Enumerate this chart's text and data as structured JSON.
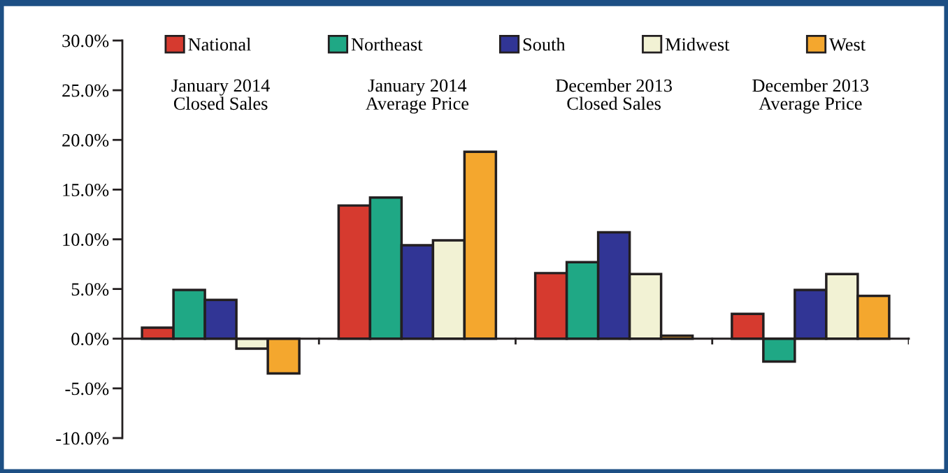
{
  "chart_data": {
    "type": "bar",
    "categories": [
      "January 2014\nClosed Sales",
      "January 2014\nAverage Price",
      "December 2013\nClosed Sales",
      "December 2013\nAverage Price"
    ],
    "series": [
      {
        "name": "National",
        "color": "#d63a2f",
        "values": [
          1.1,
          13.4,
          6.6,
          2.5
        ]
      },
      {
        "name": "Northeast",
        "color": "#1fa885",
        "values": [
          4.9,
          14.2,
          7.7,
          -2.3
        ]
      },
      {
        "name": "South",
        "color": "#313595",
        "values": [
          3.9,
          9.4,
          10.7,
          4.9
        ]
      },
      {
        "name": "Midwest",
        "color": "#f2f2d4",
        "values": [
          -1.0,
          9.9,
          6.5,
          6.5
        ]
      },
      {
        "name": "West",
        "color": "#f4a72e",
        "values": [
          -3.5,
          18.8,
          0.3,
          4.3
        ]
      }
    ],
    "ylim": [
      -10,
      30
    ],
    "yticks": [
      {
        "value": -10,
        "label": "-10.0%"
      },
      {
        "value": -5,
        "label": "-5.0%"
      },
      {
        "value": 0,
        "label": "0.0%"
      },
      {
        "value": 5,
        "label": "5.0%"
      },
      {
        "value": 10,
        "label": "10.0%"
      },
      {
        "value": 15,
        "label": "15.0%"
      },
      {
        "value": 20,
        "label": "20.0%"
      },
      {
        "value": 25,
        "label": "25.0%"
      },
      {
        "value": 30,
        "label": "30.0%"
      }
    ],
    "legend": "top"
  }
}
